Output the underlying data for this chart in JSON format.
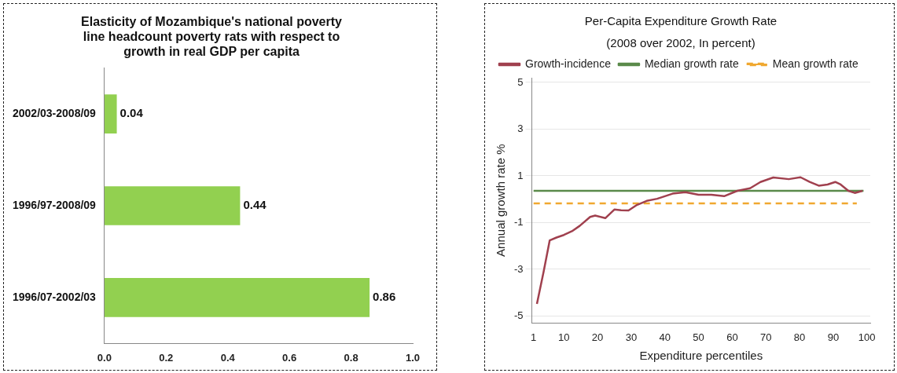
{
  "chart_data": [
    {
      "type": "bar",
      "orientation": "horizontal",
      "title": "Elasticity of Mozambique's national poverty line headcount poverty rats with respect to growth in real GDP per capita",
      "categories": [
        "2002/03-2008/09",
        "1996/97-2008/09",
        "1996/07-2002/03"
      ],
      "values": [
        0.04,
        0.44,
        0.86
      ],
      "color": "#92d050",
      "xlim": [
        0,
        1
      ],
      "xticks": [
        {
          "value": 0,
          "label": "0.0"
        },
        {
          "value": 0.2,
          "label": "0.2"
        },
        {
          "value": 0.4,
          "label": "0.4"
        },
        {
          "value": 0.6,
          "label": "0.6"
        },
        {
          "value": 0.8,
          "label": "0.8"
        },
        {
          "value": 1,
          "label": "1.0"
        }
      ],
      "data_labels": true,
      "grid": false,
      "legend": false
    },
    {
      "type": "line",
      "title": "Per-Capita Expenditure Growth Rate",
      "subtitle": "(2008 over 2002, In percent)",
      "xlabel": "Expenditure percentiles",
      "ylabel": "Annual growth rate %",
      "xlim": [
        0.5,
        101
      ],
      "xticks": [
        1,
        10,
        20,
        30,
        40,
        50,
        60,
        70,
        80,
        90,
        100
      ],
      "ylim": [
        -5.3,
        5.2
      ],
      "yticks": [
        -5,
        -3,
        -1,
        1,
        3,
        5
      ],
      "grid": "y",
      "legend": "top left",
      "marker": "none",
      "series": [
        {
          "name": "Growth-incidence",
          "color": "#a0404e",
          "line_style": "solid",
          "x": [
            2,
            4,
            5.8,
            7.8,
            10,
            12.4,
            14.7,
            17.8,
            19.3,
            22.3,
            25,
            27,
            29.2,
            31.5,
            34.6,
            37.7,
            42.3,
            46.1,
            50,
            53.8,
            57.6,
            61.5,
            65.3,
            68.4,
            72.2,
            76.8,
            80.3,
            83,
            85.7,
            88.3,
            90.6,
            92.2,
            94.5,
            96.4,
            98.7
          ],
          "values": [
            -4.48,
            -3.09,
            -1.76,
            -1.64,
            -1.53,
            -1.37,
            -1.14,
            -0.76,
            -0.7,
            -0.81,
            -0.44,
            -0.47,
            -0.48,
            -0.26,
            -0.07,
            0.02,
            0.24,
            0.3,
            0.19,
            0.19,
            0.13,
            0.36,
            0.47,
            0.74,
            0.93,
            0.86,
            0.94,
            0.74,
            0.58,
            0.63,
            0.74,
            0.63,
            0.36,
            0.27,
            0.36
          ]
        },
        {
          "name": "Median growth rate",
          "color": "#5a8a4a",
          "line_style": "solid",
          "x": [
            1,
            99
          ],
          "values": [
            0.36,
            0.36
          ]
        },
        {
          "name": "Mean growth rate",
          "color": "#f0a830",
          "line_style": "dashed",
          "x": [
            1,
            97
          ],
          "values": [
            -0.18,
            -0.18
          ]
        }
      ]
    }
  ]
}
